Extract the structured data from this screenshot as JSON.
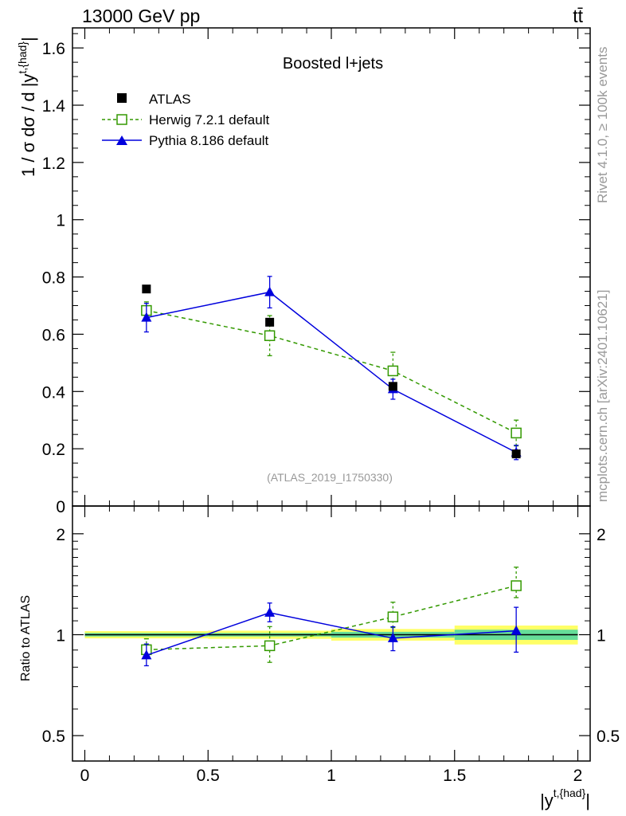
{
  "header": {
    "left_label": "13000 GeV pp",
    "right_label": "tt̄"
  },
  "side_labels": {
    "rivet": "Rivet 4.1.0, ≥ 100k events",
    "mcplots": "mcplots.cern.ch [arXiv:2401.10621]"
  },
  "colors": {
    "data": "#000000",
    "herwig": "#339900",
    "pythia": "#0000dd",
    "band_inner": "#66dd99",
    "band_outer": "#ffff66",
    "ref_id": "#999999"
  },
  "chart_data": [
    {
      "type": "scatter",
      "title": "Boosted l+jets",
      "reference_id": "(ATLAS_2019_I1750330)",
      "ylabel": "1 / σ dσ / d |y^{t,{had}}|",
      "ylabel_main": "1 / σ dσ / d |y",
      "ylabel_sup": "t,{had}",
      "ylabel_tail": "|",
      "xlim": [
        -0.05,
        2.05
      ],
      "ylim": [
        0,
        1.67
      ],
      "y_ticks": [
        0,
        0.2,
        0.4,
        0.6,
        0.8,
        1,
        1.2,
        1.4,
        1.6
      ],
      "y_tick_labels": [
        "0",
        "0.2",
        "0.4",
        "0.6",
        "0.8",
        "1",
        "1.2",
        "1.4",
        "1.6"
      ],
      "legend": [
        "ATLAS",
        "Herwig 7.2.1 default",
        "Pythia 8.186 default"
      ],
      "legend_position": "top-left",
      "x_bins": [
        [
          0,
          0.5
        ],
        [
          0.5,
          1.0
        ],
        [
          1.0,
          1.5
        ],
        [
          1.5,
          2.0
        ]
      ],
      "series": [
        {
          "name": "ATLAS",
          "x": [
            0.25,
            0.75,
            1.25,
            1.75
          ],
          "values": [
            0.758,
            0.642,
            0.418,
            0.182
          ],
          "errors": [
            0.008,
            0.008,
            0.008,
            0.006
          ]
        },
        {
          "name": "Herwig 7.2.1 default",
          "x": [
            0.25,
            0.75,
            1.25,
            1.75
          ],
          "values": [
            0.683,
            0.595,
            0.472,
            0.255
          ],
          "errors": [
            0.03,
            0.07,
            0.065,
            0.045
          ]
        },
        {
          "name": "Pythia 8.186 default",
          "x": [
            0.25,
            0.75,
            1.25,
            1.75
          ],
          "values": [
            0.658,
            0.747,
            0.408,
            0.187
          ],
          "errors": [
            0.05,
            0.055,
            0.035,
            0.025
          ]
        }
      ]
    },
    {
      "type": "scatter",
      "title": "",
      "ylabel": "Ratio to ATLAS",
      "xlabel": "|y^{t,{had}}|",
      "xlabel_main": "|y",
      "xlabel_sup": "t,{had}",
      "xlabel_tail": "|",
      "xlim": [
        -0.05,
        2.05
      ],
      "ylim": [
        0.42,
        2.42
      ],
      "ylog": true,
      "y_ticks": [
        0.5,
        1,
        2
      ],
      "y_tick_labels": [
        "0.5",
        "1",
        "2"
      ],
      "x_ticks": [
        0,
        0.5,
        1,
        1.5,
        2
      ],
      "x_tick_labels": [
        "0",
        "0.5",
        "1",
        "1.5",
        "2"
      ],
      "data_band": {
        "x_bins": [
          [
            0,
            0.5
          ],
          [
            0.5,
            1.0
          ],
          [
            1.0,
            1.5
          ],
          [
            1.5,
            2.0
          ]
        ],
        "inner": [
          0.012,
          0.012,
          0.02,
          0.035
        ],
        "outer": [
          0.025,
          0.028,
          0.04,
          0.065
        ]
      },
      "series": [
        {
          "name": "Herwig 7.2.1 default",
          "x": [
            0.25,
            0.75,
            1.25,
            1.75
          ],
          "values": [
            0.902,
            0.927,
            1.13,
            1.4
          ],
          "err_low": [
            0.05,
            0.1,
            0.08,
            0.11
          ],
          "err_high": [
            0.07,
            0.13,
            0.12,
            0.19
          ]
        },
        {
          "name": "Pythia 8.186 default",
          "x": [
            0.25,
            0.75,
            1.25,
            1.75
          ],
          "values": [
            0.868,
            1.163,
            0.976,
            1.027
          ],
          "err_low": [
            0.06,
            0.07,
            0.08,
            0.14
          ],
          "err_high": [
            0.07,
            0.08,
            0.08,
            0.18
          ]
        }
      ]
    }
  ]
}
